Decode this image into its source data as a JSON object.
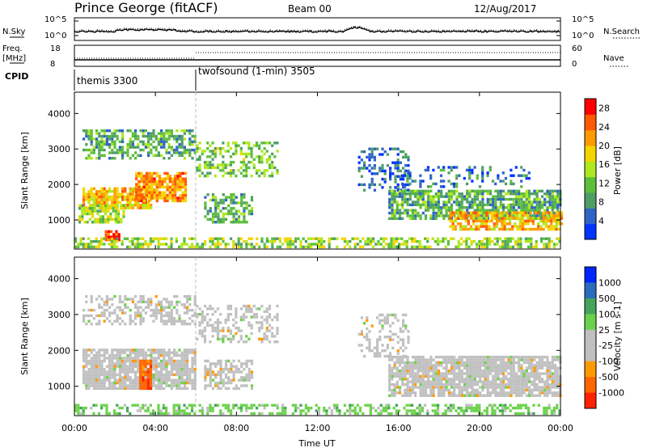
{
  "header": {
    "radar": "Prince George (fitACF)",
    "beam": "Beam 00",
    "date": "12/Aug/2017"
  },
  "sky_panel": {
    "left_label": "N.Sky",
    "right_label": "N.Search",
    "left_ticks": [
      "10^5",
      "10^0"
    ],
    "right_ticks": [
      "10^5",
      "10^0"
    ]
  },
  "freq_panel": {
    "left_label_1": "Freq.",
    "left_label_2": "[MHz]",
    "right_label": "Nave",
    "left_ticks": [
      "18",
      "8"
    ],
    "right_ticks": [
      "60",
      "0"
    ]
  },
  "cpid": {
    "label": "CPID",
    "modes": [
      {
        "name": "themis 3300",
        "start_hour": 0
      },
      {
        "name": "twofsound (1-min) 3505",
        "start_hour": 6
      }
    ]
  },
  "colors": {
    "power_scale": [
      "#0033ff",
      "#2f64c6",
      "#4e9e66",
      "#5bbf3a",
      "#aee81e",
      "#f3d500",
      "#ff9a00",
      "#ff5a00",
      "#ff0000"
    ],
    "velocity_scale": [
      "#0026ff",
      "#2a6dbd",
      "#43a55b",
      "#6ad24a",
      "#c0c0c0",
      "#c0c0c0",
      "#ff9900",
      "#ff6600",
      "#ff2200"
    ],
    "ground_scatter": "#c0c0c0"
  },
  "chart_data": [
    {
      "type": "heatmap",
      "panel": "power",
      "ylabel": "Slant Range [km]",
      "xlim": [
        0,
        24
      ],
      "ylim": [
        180,
        4600
      ],
      "y_ticks": [
        "1000",
        "2000",
        "3000",
        "4000"
      ],
      "colorbar": {
        "label": "Power [dB]",
        "ticks": [
          "4",
          "8",
          "12",
          "16",
          "20",
          "24",
          "28"
        ],
        "range": [
          0,
          30
        ]
      },
      "regions": [
        {
          "t0": 0.4,
          "t1": 3.8,
          "r0": 1300,
          "r1": 1900,
          "value": 20,
          "density": 0.8
        },
        {
          "t0": 0.2,
          "t1": 2.5,
          "r0": 900,
          "r1": 1400,
          "value": 14,
          "density": 0.7
        },
        {
          "t0": 0.4,
          "t1": 6.0,
          "r0": 2700,
          "r1": 3500,
          "value": 10,
          "density": 0.55
        },
        {
          "t0": 3.0,
          "t1": 5.5,
          "r0": 1500,
          "r1": 2300,
          "value": 22,
          "density": 0.8
        },
        {
          "t0": 1.5,
          "t1": 2.2,
          "r0": 400,
          "r1": 700,
          "value": 28,
          "density": 0.9
        },
        {
          "t0": 6.4,
          "t1": 8.8,
          "r0": 900,
          "r1": 1700,
          "value": 10,
          "density": 0.55
        },
        {
          "t0": 6.0,
          "t1": 10.0,
          "r0": 2200,
          "r1": 3200,
          "value": 12,
          "density": 0.45
        },
        {
          "t0": 14.0,
          "t1": 16.5,
          "r0": 1800,
          "r1": 3000,
          "value": 5,
          "density": 0.35
        },
        {
          "t0": 15.5,
          "t1": 24.0,
          "r0": 1000,
          "r1": 1800,
          "value": 10,
          "density": 0.75
        },
        {
          "t0": 18.5,
          "t1": 24.0,
          "r0": 700,
          "r1": 1200,
          "value": 20,
          "density": 0.75
        },
        {
          "t0": 16.0,
          "t1": 22.5,
          "r0": 1900,
          "r1": 2500,
          "value": 6,
          "density": 0.25
        },
        {
          "t0": 0.0,
          "t1": 24.0,
          "r0": 200,
          "r1": 450,
          "value": 14,
          "density": 0.55
        }
      ]
    },
    {
      "type": "heatmap",
      "panel": "velocity",
      "ylabel": "Slant Range [km]",
      "xlabel": "Time UT",
      "xlim": [
        0,
        24
      ],
      "ylim": [
        180,
        4600
      ],
      "x_ticks": [
        "00:00",
        "04:00",
        "08:00",
        "12:00",
        "16:00",
        "20:00",
        "00:00"
      ],
      "y_ticks": [
        "1000",
        "2000",
        "3000",
        "4000"
      ],
      "colorbar": {
        "label": "Velocity [m s-1]",
        "ticks": [
          "1000",
          "500",
          "100",
          "25",
          "-25",
          "-100",
          "-500",
          "-1000"
        ]
      },
      "regions": [
        {
          "t0": 0.4,
          "t1": 6.0,
          "r0": 900,
          "r1": 2000,
          "value": 0,
          "density": 0.85,
          "ground": true
        },
        {
          "t0": 0.4,
          "t1": 6.0,
          "r0": 2700,
          "r1": 3500,
          "value": 0,
          "density": 0.45,
          "ground": true
        },
        {
          "t0": 6.4,
          "t1": 8.8,
          "r0": 900,
          "r1": 1700,
          "value": 0,
          "density": 0.6,
          "ground": true
        },
        {
          "t0": 6.0,
          "t1": 10.0,
          "r0": 2200,
          "r1": 3200,
          "value": 0,
          "density": 0.4,
          "ground": true
        },
        {
          "t0": 3.2,
          "t1": 3.8,
          "r0": 900,
          "r1": 1700,
          "value": -400,
          "density": 0.9
        },
        {
          "t0": 14.0,
          "t1": 16.5,
          "r0": 1800,
          "r1": 3000,
          "value": 0,
          "density": 0.3,
          "ground": true
        },
        {
          "t0": 15.5,
          "t1": 24.0,
          "r0": 700,
          "r1": 1800,
          "value": 0,
          "density": 0.85,
          "ground": true
        },
        {
          "t0": 0.0,
          "t1": 24.0,
          "r0": 200,
          "r1": 500,
          "value": 60,
          "density": 0.5
        }
      ]
    }
  ]
}
